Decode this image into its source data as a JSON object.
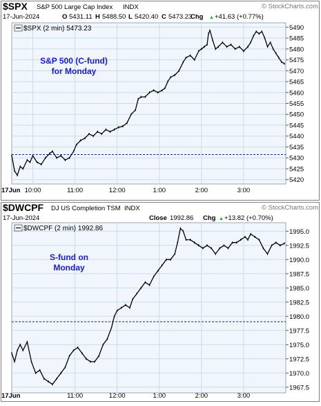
{
  "chart_data": [
    {
      "type": "candlestick",
      "symbol": "$SPX",
      "name": "S&P 500 Large Cap Index",
      "exchange": "INDX",
      "date": "17-Jun-2024",
      "watermark": "© StockCharts.com",
      "quote": {
        "o_label": "O",
        "open": "5431.11",
        "h_label": "H",
        "high": "5488.50",
        "l_label": "L",
        "low": "5420.40",
        "c_label": "C",
        "close": "5473.23",
        "chg_label": "Chg",
        "chg": "+41.63 (+0.77%)",
        "chg_arrow": "▲"
      },
      "legend": "$SPX (2 min) 5473.23",
      "annotation": [
        "S&P 500 (C-fund)",
        "for Monday"
      ],
      "colors": {
        "price": "#000000",
        "reference": "#1a1aa8",
        "annotation": "#1a1ad6",
        "grid": "#c9dcea",
        "panel": "#f0f6fb"
      },
      "ylim": [
        5418,
        5492
      ],
      "y_ticks": [
        "5490",
        "5485",
        "5480",
        "5475",
        "5470",
        "5465",
        "5460",
        "5455",
        "5450",
        "5445",
        "5440",
        "5435",
        "5430",
        "5425",
        "5420"
      ],
      "x_ticks": [
        "17Jun",
        "10:00",
        "11:00",
        "12:00",
        "1:00",
        "2:00",
        "3:00"
      ],
      "x_tick_times": [
        0,
        30,
        90,
        150,
        210,
        270,
        330
      ],
      "session_minutes": [
        0,
        390
      ],
      "reference_line": 5431.5,
      "price": [
        [
          0,
          5431.11
        ],
        [
          4,
          5424
        ],
        [
          8,
          5422
        ],
        [
          12,
          5426
        ],
        [
          16,
          5425
        ],
        [
          22,
          5429
        ],
        [
          26,
          5428
        ],
        [
          30,
          5431
        ],
        [
          36,
          5428
        ],
        [
          42,
          5427
        ],
        [
          48,
          5430
        ],
        [
          54,
          5432
        ],
        [
          58,
          5433
        ],
        [
          64,
          5430
        ],
        [
          70,
          5431
        ],
        [
          76,
          5429
        ],
        [
          82,
          5430
        ],
        [
          88,
          5433
        ],
        [
          92,
          5436
        ],
        [
          98,
          5438
        ],
        [
          104,
          5439
        ],
        [
          110,
          5441
        ],
        [
          116,
          5440
        ],
        [
          122,
          5442
        ],
        [
          128,
          5441
        ],
        [
          134,
          5443
        ],
        [
          140,
          5442
        ],
        [
          146,
          5443
        ],
        [
          152,
          5444
        ],
        [
          158,
          5444.5
        ],
        [
          164,
          5446
        ],
        [
          170,
          5450
        ],
        [
          176,
          5452
        ],
        [
          180,
          5457
        ],
        [
          184,
          5458
        ],
        [
          190,
          5458
        ],
        [
          196,
          5460
        ],
        [
          202,
          5461
        ],
        [
          208,
          5460
        ],
        [
          214,
          5461
        ],
        [
          218,
          5462
        ],
        [
          222,
          5465
        ],
        [
          226,
          5467
        ],
        [
          232,
          5468
        ],
        [
          238,
          5470
        ],
        [
          244,
          5474
        ],
        [
          248,
          5476
        ],
        [
          254,
          5477
        ],
        [
          260,
          5475
        ],
        [
          266,
          5479
        ],
        [
          270,
          5480
        ],
        [
          274,
          5481
        ],
        [
          278,
          5482
        ],
        [
          280,
          5487
        ],
        [
          282,
          5488.5
        ],
        [
          286,
          5484
        ],
        [
          290,
          5480
        ],
        [
          294,
          5481
        ],
        [
          300,
          5483
        ],
        [
          306,
          5481
        ],
        [
          312,
          5482
        ],
        [
          318,
          5480
        ],
        [
          324,
          5481
        ],
        [
          330,
          5479
        ],
        [
          336,
          5481
        ],
        [
          340,
          5483
        ],
        [
          344,
          5486
        ],
        [
          348,
          5488
        ],
        [
          352,
          5487
        ],
        [
          356,
          5488
        ],
        [
          360,
          5485
        ],
        [
          364,
          5481
        ],
        [
          368,
          5483
        ],
        [
          372,
          5480
        ],
        [
          376,
          5478
        ],
        [
          380,
          5476
        ],
        [
          384,
          5474
        ],
        [
          388,
          5473.23
        ]
      ]
    },
    {
      "type": "candlestick",
      "symbol": "$DWCPF",
      "name": "DJ US Completion TSM",
      "exchange": "INDX",
      "date": "17-Jun-2024",
      "watermark": "© StockCharts.com",
      "quote": {
        "close_label": "Close",
        "close": "1992.86",
        "chg_label": "Chg",
        "chg": "+13.82 (+0.70%)",
        "chg_arrow": "▲"
      },
      "legend": "$DWCPF (2 min) 1992.86",
      "annotation": [
        "S-fund on",
        "Monday"
      ],
      "colors": {
        "price": "#000000",
        "reference": "#1a1aa8",
        "annotation": "#1a1ad6",
        "grid": "#c9dcea",
        "panel": "#f0f6fb"
      },
      "ylim": [
        1966.5,
        1996.5
      ],
      "y_ticks": [
        "1995.0",
        "1992.5",
        "1990.0",
        "1987.5",
        "1985.0",
        "1982.5",
        "1980.0",
        "1977.5",
        "1975.0",
        "1972.5",
        "1970.0",
        "1967.5"
      ],
      "x_ticks": [
        "17Jun",
        "11:00",
        "12:00",
        "1:00",
        "2:00",
        "3:00"
      ],
      "x_tick_times": [
        0,
        90,
        150,
        210,
        270,
        330
      ],
      "session_minutes": [
        0,
        390
      ],
      "reference_line": 1979.04,
      "price": [
        [
          0,
          1973.5
        ],
        [
          4,
          1972
        ],
        [
          8,
          1974
        ],
        [
          12,
          1975
        ],
        [
          16,
          1974
        ],
        [
          22,
          1975.5
        ],
        [
          28,
          1972
        ],
        [
          34,
          1970
        ],
        [
          40,
          1970.5
        ],
        [
          46,
          1969
        ],
        [
          52,
          1968.5
        ],
        [
          58,
          1968
        ],
        [
          64,
          1969
        ],
        [
          70,
          1970
        ],
        [
          76,
          1971
        ],
        [
          82,
          1973
        ],
        [
          88,
          1974
        ],
        [
          94,
          1974.5
        ],
        [
          100,
          1973.5
        ],
        [
          106,
          1972.5
        ],
        [
          112,
          1972
        ],
        [
          118,
          1972
        ],
        [
          124,
          1973
        ],
        [
          130,
          1975
        ],
        [
          136,
          1976
        ],
        [
          142,
          1978
        ],
        [
          146,
          1980
        ],
        [
          150,
          1981
        ],
        [
          156,
          1981.5
        ],
        [
          162,
          1982
        ],
        [
          168,
          1981.5
        ],
        [
          172,
          1983
        ],
        [
          178,
          1984
        ],
        [
          184,
          1985
        ],
        [
          190,
          1986
        ],
        [
          196,
          1985.5
        ],
        [
          202,
          1987
        ],
        [
          208,
          1988
        ],
        [
          214,
          1989
        ],
        [
          220,
          1990
        ],
        [
          226,
          1990
        ],
        [
          232,
          1991
        ],
        [
          236,
          1993
        ],
        [
          240,
          1995.5
        ],
        [
          244,
          1995
        ],
        [
          248,
          1993.5
        ],
        [
          254,
          1993.5
        ],
        [
          260,
          1993
        ],
        [
          266,
          1992.5
        ],
        [
          272,
          1992
        ],
        [
          278,
          1992.5
        ],
        [
          284,
          1992
        ],
        [
          290,
          1991
        ],
        [
          296,
          1992
        ],
        [
          302,
          1992.5
        ],
        [
          308,
          1992
        ],
        [
          314,
          1993
        ],
        [
          320,
          1993
        ],
        [
          326,
          1993.5
        ],
        [
          332,
          1994
        ],
        [
          336,
          1993.5
        ],
        [
          340,
          1994.5
        ],
        [
          346,
          1994
        ],
        [
          352,
          1993.5
        ],
        [
          358,
          1992
        ],
        [
          364,
          1991
        ],
        [
          370,
          1992.5
        ],
        [
          376,
          1993
        ],
        [
          382,
          1992.5
        ],
        [
          388,
          1992.86
        ]
      ]
    }
  ]
}
